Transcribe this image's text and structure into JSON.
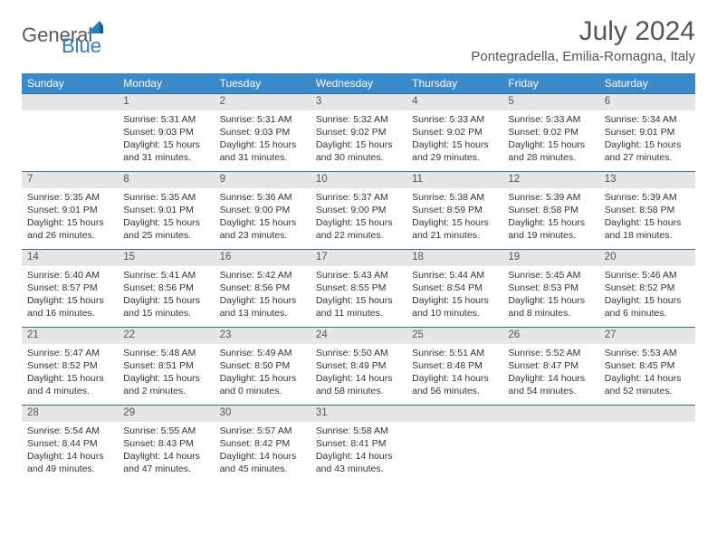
{
  "logo": {
    "word1": "General",
    "word2": "Blue"
  },
  "title": "July 2024",
  "location": "Pontegradella, Emilia-Romagna, Italy",
  "colors": {
    "header_bg": "#3a89c9",
    "header_text": "#ffffff",
    "daynum_bg": "#e6e6e6",
    "border": "#2f6fa8",
    "text": "#333333",
    "title_text": "#555555"
  },
  "day_headers": [
    "Sunday",
    "Monday",
    "Tuesday",
    "Wednesday",
    "Thursday",
    "Friday",
    "Saturday"
  ],
  "weeks": [
    {
      "nums": [
        "",
        "1",
        "2",
        "3",
        "4",
        "5",
        "6"
      ],
      "details": [
        "",
        "Sunrise: 5:31 AM\nSunset: 9:03 PM\nDaylight: 15 hours and 31 minutes.",
        "Sunrise: 5:31 AM\nSunset: 9:03 PM\nDaylight: 15 hours and 31 minutes.",
        "Sunrise: 5:32 AM\nSunset: 9:02 PM\nDaylight: 15 hours and 30 minutes.",
        "Sunrise: 5:33 AM\nSunset: 9:02 PM\nDaylight: 15 hours and 29 minutes.",
        "Sunrise: 5:33 AM\nSunset: 9:02 PM\nDaylight: 15 hours and 28 minutes.",
        "Sunrise: 5:34 AM\nSunset: 9:01 PM\nDaylight: 15 hours and 27 minutes."
      ]
    },
    {
      "nums": [
        "7",
        "8",
        "9",
        "10",
        "11",
        "12",
        "13"
      ],
      "details": [
        "Sunrise: 5:35 AM\nSunset: 9:01 PM\nDaylight: 15 hours and 26 minutes.",
        "Sunrise: 5:35 AM\nSunset: 9:01 PM\nDaylight: 15 hours and 25 minutes.",
        "Sunrise: 5:36 AM\nSunset: 9:00 PM\nDaylight: 15 hours and 23 minutes.",
        "Sunrise: 5:37 AM\nSunset: 9:00 PM\nDaylight: 15 hours and 22 minutes.",
        "Sunrise: 5:38 AM\nSunset: 8:59 PM\nDaylight: 15 hours and 21 minutes.",
        "Sunrise: 5:39 AM\nSunset: 8:58 PM\nDaylight: 15 hours and 19 minutes.",
        "Sunrise: 5:39 AM\nSunset: 8:58 PM\nDaylight: 15 hours and 18 minutes."
      ]
    },
    {
      "nums": [
        "14",
        "15",
        "16",
        "17",
        "18",
        "19",
        "20"
      ],
      "details": [
        "Sunrise: 5:40 AM\nSunset: 8:57 PM\nDaylight: 15 hours and 16 minutes.",
        "Sunrise: 5:41 AM\nSunset: 8:56 PM\nDaylight: 15 hours and 15 minutes.",
        "Sunrise: 5:42 AM\nSunset: 8:56 PM\nDaylight: 15 hours and 13 minutes.",
        "Sunrise: 5:43 AM\nSunset: 8:55 PM\nDaylight: 15 hours and 11 minutes.",
        "Sunrise: 5:44 AM\nSunset: 8:54 PM\nDaylight: 15 hours and 10 minutes.",
        "Sunrise: 5:45 AM\nSunset: 8:53 PM\nDaylight: 15 hours and 8 minutes.",
        "Sunrise: 5:46 AM\nSunset: 8:52 PM\nDaylight: 15 hours and 6 minutes."
      ]
    },
    {
      "nums": [
        "21",
        "22",
        "23",
        "24",
        "25",
        "26",
        "27"
      ],
      "details": [
        "Sunrise: 5:47 AM\nSunset: 8:52 PM\nDaylight: 15 hours and 4 minutes.",
        "Sunrise: 5:48 AM\nSunset: 8:51 PM\nDaylight: 15 hours and 2 minutes.",
        "Sunrise: 5:49 AM\nSunset: 8:50 PM\nDaylight: 15 hours and 0 minutes.",
        "Sunrise: 5:50 AM\nSunset: 8:49 PM\nDaylight: 14 hours and 58 minutes.",
        "Sunrise: 5:51 AM\nSunset: 8:48 PM\nDaylight: 14 hours and 56 minutes.",
        "Sunrise: 5:52 AM\nSunset: 8:47 PM\nDaylight: 14 hours and 54 minutes.",
        "Sunrise: 5:53 AM\nSunset: 8:45 PM\nDaylight: 14 hours and 52 minutes."
      ]
    },
    {
      "nums": [
        "28",
        "29",
        "30",
        "31",
        "",
        "",
        ""
      ],
      "details": [
        "Sunrise: 5:54 AM\nSunset: 8:44 PM\nDaylight: 14 hours and 49 minutes.",
        "Sunrise: 5:55 AM\nSunset: 8:43 PM\nDaylight: 14 hours and 47 minutes.",
        "Sunrise: 5:57 AM\nSunset: 8:42 PM\nDaylight: 14 hours and 45 minutes.",
        "Sunrise: 5:58 AM\nSunset: 8:41 PM\nDaylight: 14 hours and 43 minutes.",
        "",
        "",
        ""
      ]
    }
  ]
}
